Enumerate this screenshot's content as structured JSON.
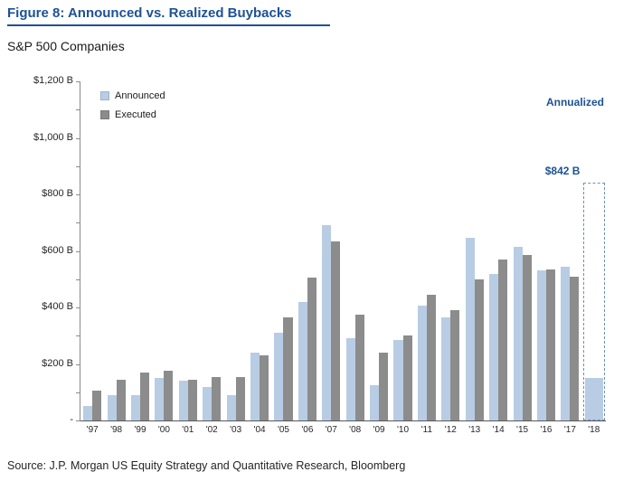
{
  "figure": {
    "title": "Figure 8: Announced vs. Realized Buybacks",
    "subtitle": "S&P 500 Companies",
    "source": "Source: J.P. Morgan US Equity Strategy and Quantitative Research, Bloomberg"
  },
  "annotations": {
    "annualized_label": "Annualized",
    "annualized_value_label": "$842 B"
  },
  "legend": [
    {
      "label": "Announced",
      "color": "#b8cce4"
    },
    {
      "label": "Executed",
      "color": "#8c8c8c"
    }
  ],
  "colors": {
    "title_blue": "#1d5296",
    "announced": "#b8cce4",
    "executed": "#8c8c8c",
    "dashed_outline": "#7290b8",
    "axis": "#8c8c8c"
  },
  "chart_data": {
    "type": "bar",
    "title": "Announced vs. Realized Buybacks, S&P 500 Companies",
    "xlabel": "",
    "ylabel": "",
    "categories": [
      "'97",
      "'98",
      "'99",
      "'00",
      "'01",
      "'02",
      "'03",
      "'04",
      "'05",
      "'06",
      "'07",
      "'08",
      "'09",
      "'10",
      "'11",
      "'12",
      "'13",
      "'14",
      "'15",
      "'16",
      "'17",
      "'18"
    ],
    "series": [
      {
        "name": "Announced",
        "color": "#b8cce4",
        "values": [
          50,
          90,
          90,
          150,
          140,
          120,
          90,
          240,
          310,
          420,
          690,
          290,
          125,
          285,
          405,
          365,
          645,
          520,
          615,
          530,
          545,
          150
        ]
      },
      {
        "name": "Executed",
        "color": "#8c8c8c",
        "values": [
          105,
          145,
          170,
          175,
          145,
          155,
          155,
          230,
          365,
          505,
          635,
          375,
          240,
          300,
          445,
          390,
          500,
          570,
          585,
          535,
          510,
          null
        ]
      }
    ],
    "annualized_2018": 842,
    "ylim": [
      0,
      1200
    ],
    "y_tick_major": 200,
    "y_tick_minor": 100,
    "y_tick_labels": [
      "-",
      "$200 B",
      "$400 B",
      "$600 B",
      "$800 B",
      "$1,000 B",
      "$1,200 B"
    ],
    "legend_position": "top-left",
    "grid": false
  }
}
